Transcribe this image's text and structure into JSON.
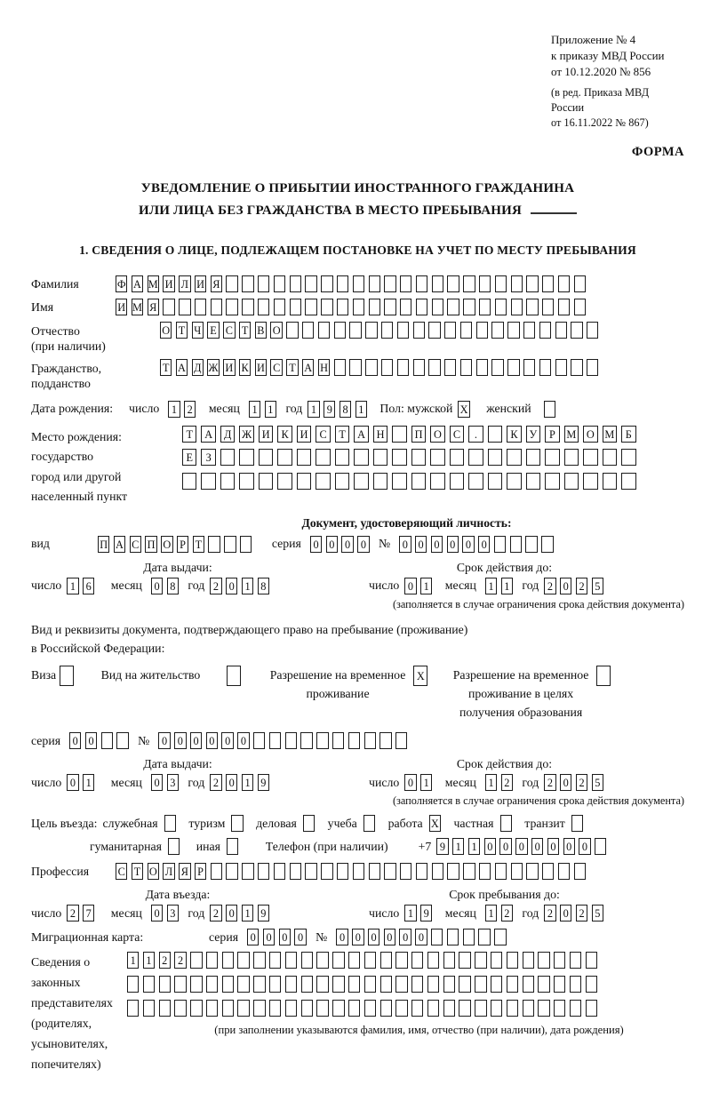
{
  "header": {
    "appendix_lines": [
      "Приложение № 4",
      "к приказу МВД России",
      "от 10.12.2020 № 856"
    ],
    "revision_lines": [
      "(в ред. Приказа МВД России",
      "от 16.11.2022 № 867)"
    ],
    "form_label": "ФОРМА"
  },
  "title": {
    "line1": "УВЕДОМЛЕНИЕ О ПРИБЫТИИ ИНОСТРАННОГО ГРАЖДАНИНА",
    "line2": "ИЛИ ЛИЦА БЕЗ ГРАЖДАНСТВА В МЕСТО ПРЕБЫВАНИЯ"
  },
  "section_heading": "1. СВЕДЕНИЯ О ЛИЦЕ, ПОДЛЕЖАЩЕМ ПОСТАНОВКЕ НА УЧЕТ ПО МЕСТУ ПРЕБЫВАНИЯ",
  "labels": {
    "day": "число",
    "month": "месяц",
    "year": "год",
    "series": "серия",
    "number": "№",
    "kind": "вид",
    "issue_date": "Дата выдачи:",
    "valid_until": "Срок действия до:",
    "restriction_note": "(заполняется в случае ограничения срока действия документа)"
  },
  "person": {
    "surname": {
      "label": "Фамилия",
      "boxes": {
        "v": "ФАМИЛИЯ",
        "n": 30
      }
    },
    "given_name": {
      "label": "Имя",
      "boxes": {
        "v": "ИМЯ",
        "n": 30
      }
    },
    "patronymic": {
      "label1": "Отчество",
      "label2": "(при наличии)",
      "boxes": {
        "v": "ОТЧЕСТВО",
        "n": 28
      }
    },
    "citizenship": {
      "label1": "Гражданство,",
      "label2": "подданство",
      "boxes": {
        "v": "ТАДЖИКИСТАН",
        "n": 28
      }
    },
    "birth_date": {
      "label": "Дата рождения:",
      "day": {
        "v": "12",
        "n": 2
      },
      "month": {
        "v": "11",
        "n": 2
      },
      "year": {
        "v": "1981",
        "n": 4
      }
    },
    "gender": {
      "label_male": "Пол: мужской",
      "label_female": "женский",
      "male_box": {
        "v": "X",
        "n": 1
      },
      "female_box": {
        "v": "",
        "n": 1
      }
    },
    "birth_place": {
      "label_lines": [
        "Место рождения:",
        "государство",
        "город или другой",
        "населенный пункт"
      ],
      "rows": [
        {
          "v": "ТАДЖИКИСТАН ПОС. КУРМОМБ",
          "n": 24
        },
        {
          "v": "ЕЗ",
          "n": 24
        },
        {
          "v": "",
          "n": 24
        }
      ]
    }
  },
  "identity_doc": {
    "heading": "Документ, удостоверяющий личность:",
    "kind_boxes": {
      "v": "ПАСПОРТ",
      "n": 10
    },
    "series_boxes": {
      "v": "0000",
      "n": 4
    },
    "number_boxes": {
      "v": "000000",
      "n": 10
    },
    "issue": {
      "day": {
        "v": "16",
        "n": 2
      },
      "month": {
        "v": "08",
        "n": 2
      },
      "year": {
        "v": "2018",
        "n": 4
      }
    },
    "valid": {
      "day": {
        "v": "01",
        "n": 2
      },
      "month": {
        "v": "11",
        "n": 2
      },
      "year": {
        "v": "2025",
        "n": 4
      }
    }
  },
  "residence_doc": {
    "intro1": "Вид и реквизиты документа, подтверждающего право на пребывание (проживание)",
    "intro2": "в Российской Федерации:",
    "options": [
      {
        "label": "Виза",
        "box": {
          "v": "",
          "n": 1
        }
      },
      {
        "label": "Вид на жительство",
        "box": {
          "v": "",
          "n": 1
        }
      },
      {
        "label": "Разрешение на временное\nпроживание",
        "box": {
          "v": "X",
          "n": 1
        }
      },
      {
        "label": "Разрешение на временное\nпроживание в целях\nполучения образования",
        "box": {
          "v": "",
          "n": 1
        }
      }
    ],
    "series_boxes": {
      "v": "00",
      "n": 4
    },
    "number_boxes": {
      "v": "000000",
      "n": 16
    },
    "issue": {
      "day": {
        "v": "01",
        "n": 2
      },
      "month": {
        "v": "03",
        "n": 2
      },
      "year": {
        "v": "2019",
        "n": 4
      }
    },
    "valid": {
      "day": {
        "v": "01",
        "n": 2
      },
      "month": {
        "v": "12",
        "n": 2
      },
      "year": {
        "v": "2025",
        "n": 4
      }
    }
  },
  "visit": {
    "purpose_label": "Цель въезда:",
    "options_line1": [
      {
        "label": "служебная",
        "box": {
          "v": "",
          "n": 1
        }
      },
      {
        "label": "туризм",
        "box": {
          "v": "",
          "n": 1
        }
      },
      {
        "label": "деловая",
        "box": {
          "v": "",
          "n": 1
        }
      },
      {
        "label": "учеба",
        "box": {
          "v": "",
          "n": 1
        }
      },
      {
        "label": "работа",
        "box": {
          "v": "X",
          "n": 1
        }
      },
      {
        "label": "частная",
        "box": {
          "v": "",
          "n": 1
        }
      },
      {
        "label": "транзит",
        "box": {
          "v": "",
          "n": 1
        }
      }
    ],
    "options_line2": [
      {
        "label": "гуманитарная",
        "box": {
          "v": "",
          "n": 1
        }
      },
      {
        "label": "иная",
        "box": {
          "v": "",
          "n": 1
        }
      }
    ],
    "phone_label": "Телефон (при наличии)",
    "phone_prefix": "+7",
    "phone_boxes": {
      "v": "9110000000",
      "n": 11
    }
  },
  "profession": {
    "label": "Профессия",
    "boxes": {
      "v": "СТОЛЯР",
      "n": 30
    }
  },
  "entry": {
    "date_header": "Дата въезда:",
    "stay_header": "Срок пребывания до:",
    "date": {
      "day": {
        "v": "27",
        "n": 2
      },
      "month": {
        "v": "03",
        "n": 2
      },
      "year": {
        "v": "2019",
        "n": 4
      }
    },
    "stay": {
      "day": {
        "v": "19",
        "n": 2
      },
      "month": {
        "v": "12",
        "n": 2
      },
      "year": {
        "v": "2025",
        "n": 4
      }
    }
  },
  "migration_card": {
    "label": "Миграционная карта:",
    "series_boxes": {
      "v": "0000",
      "n": 4
    },
    "number_boxes": {
      "v": "000000",
      "n": 11
    }
  },
  "legal_reps": {
    "label_lines": [
      "Сведения о",
      "законных",
      "представителях",
      "(родителях,",
      "усыновителях,",
      "попечителях)"
    ],
    "rows": [
      {
        "v": "1122",
        "n": 30
      },
      {
        "v": "",
        "n": 30
      },
      {
        "v": "",
        "n": 30
      }
    ],
    "note": "(при заполнении указываются фамилия, имя, отчество (при наличии), дата рождения)"
  }
}
